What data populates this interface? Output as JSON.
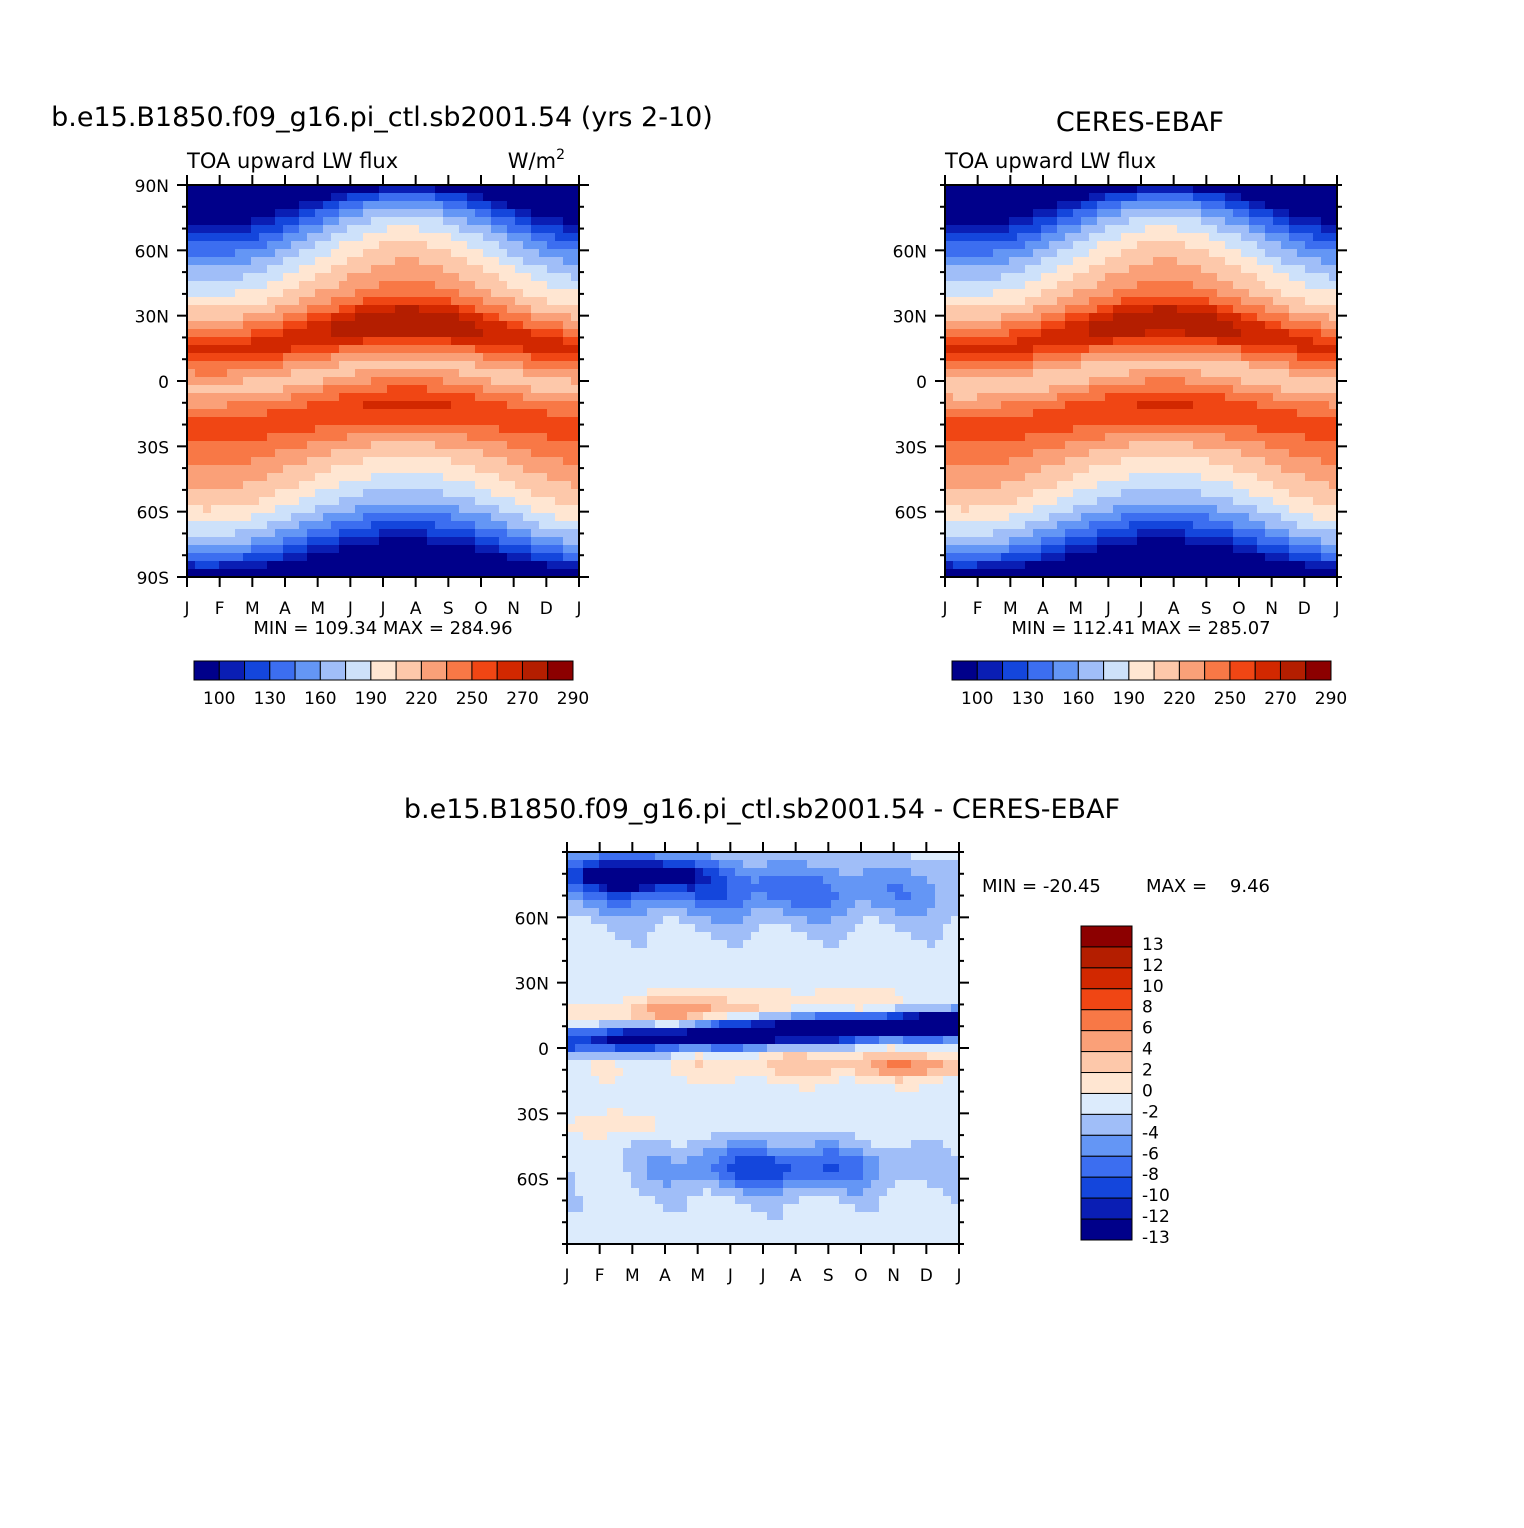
{
  "palette": {
    "abs": [
      "#00008a",
      "#0a1eb4",
      "#1446dc",
      "#3c6ef0",
      "#6496f5",
      "#a0bef8",
      "#cde1fa",
      "#ffe6d2",
      "#fdc8aa",
      "#faa078",
      "#f87846",
      "#f04614",
      "#d22800",
      "#b41e00",
      "#8c0000"
    ],
    "diff": [
      "#00008a",
      "#0a1eb4",
      "#1446dc",
      "#3c6ef0",
      "#6496f5",
      "#a0bef8",
      "#dcebfc",
      "#ffe6d2",
      "#fdc8aa",
      "#faa078",
      "#f87846",
      "#f04614",
      "#d22800",
      "#b41e00",
      "#8c0000"
    ]
  },
  "chart_data": [
    {
      "id": "model",
      "type": "contour",
      "title": "b.e15.B1850.f09_g16.pi_ctl.sb2001.54 (yrs 2-10)",
      "left_string": "TOA upward LW flux",
      "units_base": "W/m",
      "units_exp": "2",
      "x_ticks": [
        "J",
        "F",
        "M",
        "A",
        "M",
        "J",
        "J",
        "A",
        "S",
        "O",
        "N",
        "D",
        "J"
      ],
      "y_ticks": [
        "90N",
        "60N",
        "30N",
        "0",
        "30S",
        "60S",
        "90S"
      ],
      "stats": "MIN = 109.34 MAX = 284.96",
      "min": 109.34,
      "max": 284.96,
      "colorbar_labels": [
        "100",
        "130",
        "160",
        "190",
        "220",
        "250",
        "270",
        "290"
      ]
    },
    {
      "id": "obs",
      "type": "contour",
      "title": "CERES-EBAF",
      "left_string": "TOA upward LW flux",
      "x_ticks": [
        "J",
        "F",
        "M",
        "A",
        "M",
        "J",
        "J",
        "A",
        "S",
        "O",
        "N",
        "D",
        "J"
      ],
      "y_ticks": [
        "60N",
        "30N",
        "0",
        "30S",
        "60S"
      ],
      "stats": "MIN = 112.41 MAX = 285.07",
      "min": 112.41,
      "max": 285.07,
      "colorbar_labels": [
        "100",
        "130",
        "160",
        "190",
        "220",
        "250",
        "270",
        "290"
      ]
    },
    {
      "id": "diff",
      "type": "contour",
      "title": "b.e15.B1850.f09_g16.pi_ctl.sb2001.54 - CERES-EBAF",
      "x_ticks": [
        "J",
        "F",
        "M",
        "A",
        "M",
        "J",
        "J",
        "A",
        "S",
        "O",
        "N",
        "D",
        "J"
      ],
      "y_ticks": [
        "60N",
        "30N",
        "0",
        "30S",
        "60S"
      ],
      "stats_min": "MIN = -20.45",
      "stats_max": "MAX =    9.46",
      "min": -20.45,
      "max": 9.46,
      "colorbar_labels": [
        "13",
        "12",
        "10",
        "8",
        "6",
        "4",
        "2",
        "0",
        "-2",
        "-4",
        "-6",
        "-8",
        "-10",
        "-12",
        "-13"
      ]
    }
  ]
}
